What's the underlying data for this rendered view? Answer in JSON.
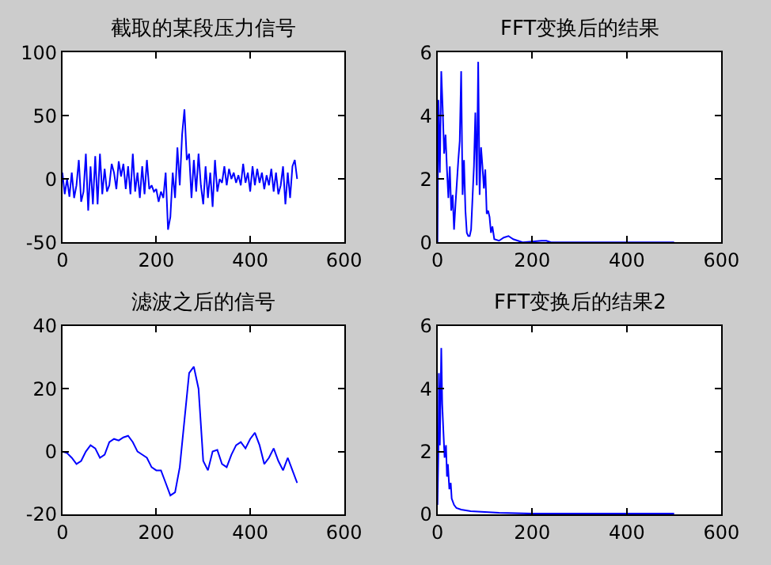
{
  "chart_data": [
    {
      "type": "line",
      "title": "截取的某段压力信号",
      "xlim": [
        0,
        600
      ],
      "ylim": [
        -50,
        100
      ],
      "xticks": [
        0,
        200,
        400,
        600
      ],
      "yticks": [
        -50,
        0,
        50,
        100
      ],
      "x": [
        0,
        5,
        10,
        15,
        20,
        25,
        30,
        35,
        40,
        45,
        50,
        55,
        60,
        65,
        70,
        75,
        80,
        85,
        90,
        95,
        100,
        105,
        110,
        115,
        120,
        125,
        130,
        135,
        140,
        145,
        150,
        155,
        160,
        165,
        170,
        175,
        180,
        185,
        190,
        195,
        200,
        205,
        210,
        215,
        220,
        225,
        230,
        235,
        240,
        245,
        250,
        255,
        260,
        265,
        270,
        275,
        280,
        285,
        290,
        295,
        300,
        305,
        310,
        315,
        320,
        325,
        330,
        335,
        340,
        345,
        350,
        355,
        360,
        365,
        370,
        375,
        380,
        385,
        390,
        395,
        400,
        405,
        410,
        415,
        420,
        425,
        430,
        435,
        440,
        445,
        450,
        455,
        460,
        465,
        470,
        475,
        480,
        485,
        490,
        495,
        500
      ],
      "series": [
        {
          "color": "#0000ff",
          "values": [
            5,
            -12,
            0,
            -14,
            5,
            -15,
            -5,
            15,
            -18,
            -10,
            20,
            -25,
            10,
            -20,
            18,
            -20,
            20,
            -12,
            8,
            -10,
            -5,
            12,
            5,
            -8,
            14,
            2,
            12,
            -8,
            10,
            -12,
            20,
            -10,
            5,
            -15,
            10,
            -12,
            15,
            -8,
            -5,
            -10,
            -8,
            -18,
            -10,
            -15,
            5,
            -40,
            -30,
            5,
            -15,
            25,
            -5,
            35,
            55,
            15,
            20,
            -15,
            15,
            -10,
            20,
            -5,
            -20,
            10,
            -15,
            5,
            -22,
            15,
            -10,
            0,
            -3,
            10,
            -5,
            8,
            0,
            5,
            -3,
            3,
            -5,
            12,
            -3,
            5,
            -10,
            10,
            -5,
            8,
            -3,
            5,
            -8,
            3,
            -5,
            8,
            -10,
            5,
            -12,
            -5,
            10,
            -20,
            5,
            -15,
            10,
            15,
            0
          ]
        }
      ]
    },
    {
      "type": "line",
      "title": "FFT变换后的结果",
      "xlim": [
        0,
        600
      ],
      "ylim": [
        0,
        6
      ],
      "xticks": [
        0,
        200,
        400,
        600
      ],
      "yticks": [
        0,
        2,
        4,
        6
      ],
      "x": [
        0,
        2,
        5,
        8,
        11,
        14,
        17,
        20,
        23,
        26,
        29,
        32,
        35,
        38,
        41,
        44,
        47,
        50,
        53,
        56,
        59,
        62,
        65,
        68,
        71,
        74,
        77,
        80,
        83,
        86,
        89,
        92,
        95,
        98,
        101,
        104,
        107,
        110,
        113,
        116,
        120,
        130,
        140,
        150,
        160,
        170,
        180,
        220,
        230,
        240,
        500
      ],
      "series": [
        {
          "color": "#0000ff",
          "values": [
            0,
            4.5,
            2.2,
            5.4,
            4.2,
            2.8,
            3.4,
            2.3,
            1.4,
            2.4,
            1.0,
            1.5,
            0.4,
            1.2,
            1.9,
            2.6,
            3.2,
            5.4,
            1.5,
            2.6,
            1.0,
            0.3,
            0.2,
            0.2,
            0.4,
            1.4,
            2.4,
            4.1,
            1.8,
            5.7,
            1.5,
            3.0,
            2.4,
            1.7,
            2.3,
            0.9,
            1.0,
            0.8,
            0.3,
            0.5,
            0.1,
            0.05,
            0.15,
            0.2,
            0.1,
            0.05,
            0,
            0.05,
            0.05,
            0,
            0
          ]
        }
      ]
    },
    {
      "type": "line",
      "title": "滤波之后的信号",
      "xlim": [
        0,
        600
      ],
      "ylim": [
        -20,
        40
      ],
      "xticks": [
        0,
        200,
        400,
        600
      ],
      "yticks": [
        -20,
        0,
        20,
        40
      ],
      "x": [
        0,
        10,
        20,
        30,
        40,
        50,
        60,
        70,
        80,
        90,
        100,
        110,
        120,
        130,
        140,
        150,
        160,
        170,
        180,
        190,
        200,
        210,
        220,
        230,
        240,
        250,
        260,
        270,
        280,
        290,
        300,
        310,
        320,
        330,
        340,
        350,
        360,
        370,
        380,
        390,
        400,
        410,
        420,
        430,
        440,
        450,
        460,
        470,
        480,
        490,
        500
      ],
      "series": [
        {
          "color": "#0000ff",
          "values": [
            0,
            -0.5,
            -2,
            -4,
            -3,
            0,
            2,
            1,
            -2,
            -1,
            3,
            4,
            3.5,
            4.5,
            5,
            3,
            0,
            -1,
            -2,
            -5,
            -6,
            -6,
            -10,
            -14,
            -13,
            -5,
            10,
            25,
            27,
            20,
            -3,
            -6,
            0,
            0.5,
            -4,
            -5,
            -1,
            2,
            3,
            1,
            4,
            6,
            2,
            -4,
            -2,
            1,
            -3,
            -6,
            -2,
            -6,
            -10
          ]
        }
      ]
    },
    {
      "type": "line",
      "title": "FFT变换后的结果2",
      "xlim": [
        0,
        600
      ],
      "ylim": [
        0,
        6
      ],
      "xticks": [
        0,
        200,
        400,
        600
      ],
      "yticks": [
        0,
        2,
        4,
        6
      ],
      "x": [
        0,
        2,
        3,
        5,
        8,
        10,
        12,
        15,
        18,
        20,
        22,
        25,
        28,
        30,
        35,
        40,
        50,
        70,
        130,
        200,
        500
      ],
      "series": [
        {
          "color": "#0000ff",
          "values": [
            0.3,
            2,
            4.5,
            2.2,
            5.3,
            3.5,
            2.8,
            1.8,
            2.2,
            1.2,
            1.6,
            0.8,
            1.0,
            0.5,
            0.3,
            0.2,
            0.15,
            0.1,
            0.05,
            0.02,
            0.02
          ]
        }
      ]
    }
  ]
}
